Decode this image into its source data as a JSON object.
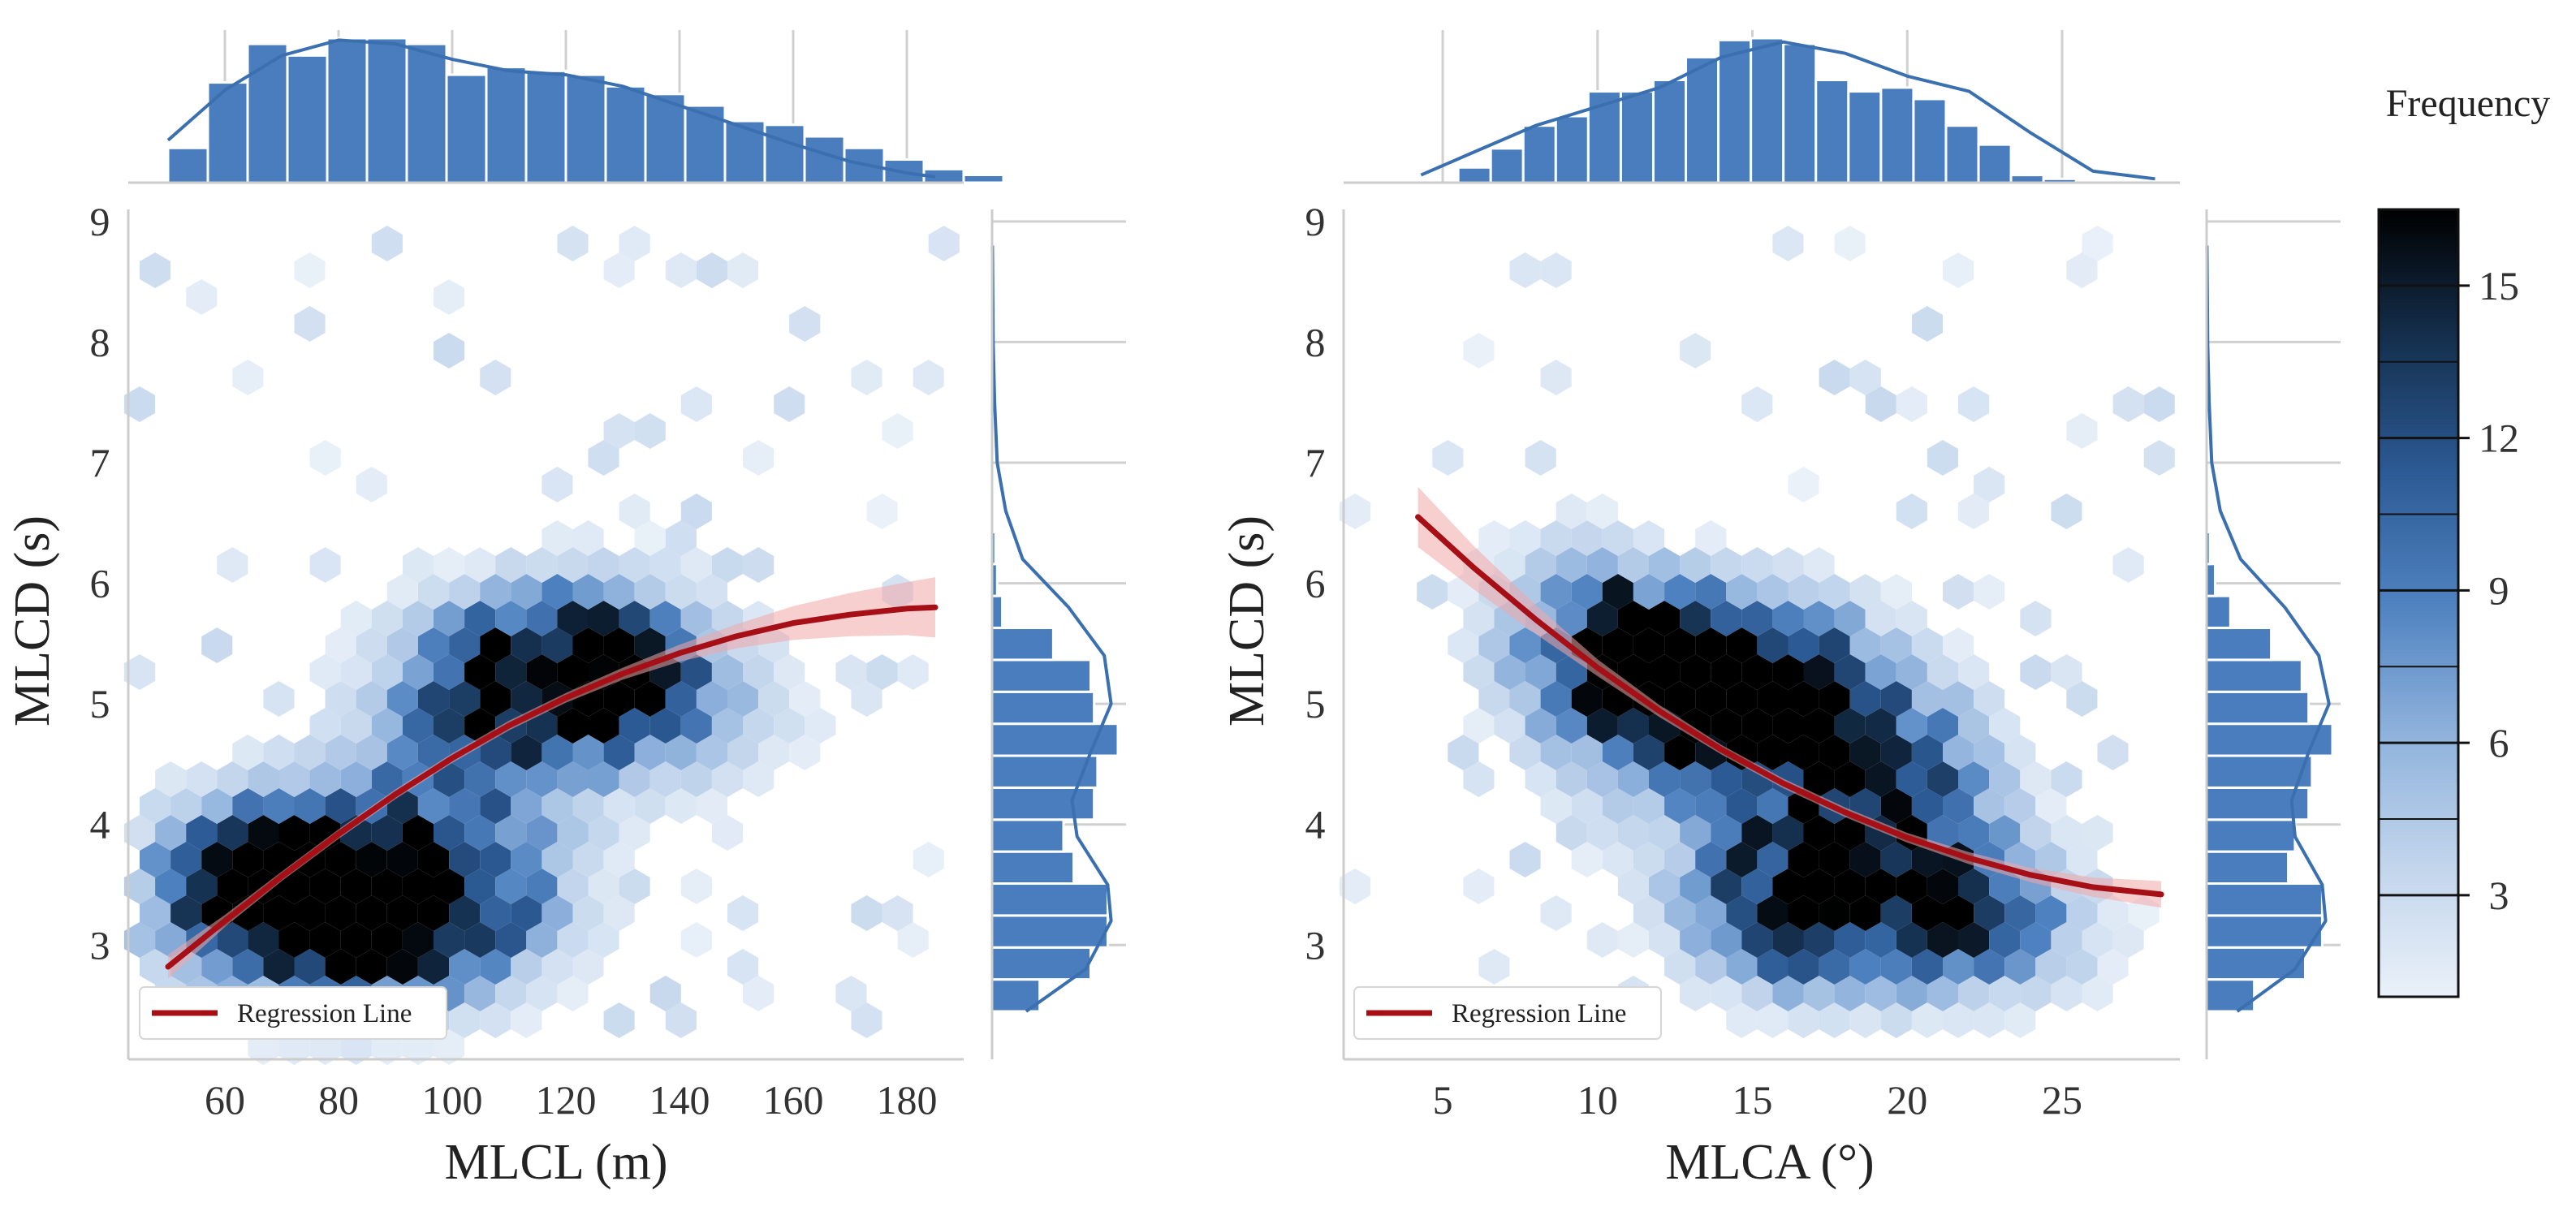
{
  "colors": {
    "bar": "#4a7dbd",
    "bar_edge": "#ffffff",
    "kde": "#3a6fb0",
    "regression": "#a50f15",
    "ci_band": "#f2a8a8",
    "grid": "#d0d0d0",
    "spine": "#cccccc",
    "cmap": [
      "#eaf1f9",
      "#c2d5ec",
      "#8fb2dc",
      "#4f82c0",
      "#2c5a94",
      "#15304f",
      "#000000"
    ]
  },
  "colorbar": {
    "title": "Frequency",
    "ticks": [
      "3",
      "6",
      "9",
      "12",
      "15"
    ],
    "tick_values": [
      3,
      6,
      9,
      12,
      15
    ],
    "range": [
      1,
      16.5
    ]
  },
  "chart_data": [
    {
      "type": "hexbin",
      "xlabel": "MLCL (m)",
      "ylabel": "MLCD (s)",
      "xlim": [
        43,
        190
      ],
      "ylim": [
        2.1,
        9.1
      ],
      "xticks": [
        "60",
        "80",
        "100",
        "120",
        "140",
        "160",
        "180"
      ],
      "xtick_values": [
        60,
        80,
        100,
        120,
        140,
        160,
        180
      ],
      "yticks": [
        "3",
        "4",
        "5",
        "6",
        "7",
        "8",
        "9"
      ],
      "ytick_values": [
        3,
        4,
        5,
        6,
        7,
        8,
        9
      ],
      "legend": "Regression Line",
      "regression": {
        "x": [
          50,
          60,
          70,
          80,
          90,
          100,
          110,
          120,
          130,
          140,
          150,
          160,
          170,
          180,
          185
        ],
        "y": [
          2.82,
          3.2,
          3.57,
          3.92,
          4.25,
          4.55,
          4.82,
          5.05,
          5.25,
          5.42,
          5.56,
          5.67,
          5.74,
          5.79,
          5.8
        ],
        "ci": [
          0.1,
          0.05,
          0.04,
          0.04,
          0.04,
          0.04,
          0.04,
          0.04,
          0.05,
          0.07,
          0.1,
          0.14,
          0.18,
          0.22,
          0.25
        ]
      },
      "hexbin": {
        "centers": [
          [
            75,
            3.4
          ],
          [
            65,
            3.5
          ],
          [
            85,
            3.3
          ],
          [
            95,
            3.2
          ],
          [
            110,
            3.5
          ],
          [
            115,
            5.2
          ],
          [
            125,
            5.4
          ],
          [
            110,
            5.0
          ],
          [
            135,
            5.2
          ],
          [
            100,
            4.5
          ],
          [
            145,
            4.9
          ]
        ],
        "spread": [
          [
            18,
            0.55
          ],
          [
            12,
            0.45
          ],
          [
            14,
            0.5
          ],
          [
            14,
            0.45
          ],
          [
            12,
            0.5
          ],
          [
            16,
            0.5
          ],
          [
            12,
            0.45
          ],
          [
            12,
            0.55
          ],
          [
            12,
            0.5
          ],
          [
            14,
            0.6
          ],
          [
            14,
            0.45
          ]
        ],
        "weights": [
          14,
          7,
          8,
          6,
          4,
          9,
          6,
          5,
          4,
          5,
          3
        ],
        "background": [
          3,
          4,
          5,
          6,
          7,
          8,
          9
        ],
        "peak_cells": [
          [
            80,
            3.55
          ],
          [
            70,
            3.4
          ],
          [
            75,
            3.0
          ],
          [
            78,
            3.35
          ]
        ]
      },
      "top_hist": {
        "bin_start": 50,
        "bin_width": 7,
        "counts": [
          18,
          52,
          72,
          66,
          75,
          75,
          72,
          56,
          60,
          58,
          56,
          50,
          46,
          40,
          32,
          30,
          24,
          18,
          12,
          7,
          4
        ]
      },
      "top_kde": {
        "x": [
          50,
          60,
          70,
          80,
          90,
          100,
          110,
          120,
          130,
          140,
          150,
          160,
          170,
          180,
          185
        ],
        "y": [
          22,
          48,
          66,
          74,
          72,
          64,
          58,
          56,
          50,
          40,
          30,
          20,
          11,
          5,
          3
        ]
      },
      "right_hist": {
        "bin_start": 2.45,
        "bin_width": 0.265,
        "counts": [
          28,
          58,
          68,
          68,
          48,
          42,
          60,
          62,
          74,
          60,
          58,
          36,
          6,
          3,
          2,
          1
        ]
      },
      "right_kde": {
        "y": [
          2.45,
          2.8,
          3.2,
          3.5,
          3.9,
          4.2,
          4.6,
          5.0,
          5.4,
          5.8,
          6.2,
          6.6,
          7.0,
          7.5,
          8.0,
          8.8
        ],
        "x": [
          20,
          55,
          70,
          68,
          50,
          47,
          58,
          70,
          66,
          45,
          18,
          8,
          3,
          1.5,
          0.6,
          0.2
        ]
      }
    },
    {
      "type": "hexbin",
      "xlabel": "MLCA (°)",
      "ylabel": "MLCD (s)",
      "xlim": [
        1.8,
        28.8
      ],
      "ylim": [
        2.1,
        9.1
      ],
      "xticks": [
        "5",
        "10",
        "15",
        "20",
        "25"
      ],
      "xtick_values": [
        5,
        10,
        15,
        20,
        25
      ],
      "yticks": [
        "3",
        "4",
        "5",
        "6",
        "7",
        "8",
        "9"
      ],
      "ytick_values": [
        3,
        4,
        5,
        6,
        7,
        8,
        9
      ],
      "legend": "Regression Line",
      "regression": {
        "x": [
          4.2,
          6,
          8,
          10,
          12,
          14,
          16,
          18,
          20,
          22,
          24,
          26,
          28.2
        ],
        "y": [
          6.55,
          6.13,
          5.7,
          5.3,
          4.94,
          4.62,
          4.34,
          4.1,
          3.89,
          3.72,
          3.58,
          3.48,
          3.42
        ],
        "ci": [
          0.25,
          0.18,
          0.12,
          0.07,
          0.05,
          0.04,
          0.04,
          0.04,
          0.04,
          0.05,
          0.06,
          0.08,
          0.11
        ]
      },
      "hexbin": {
        "centers": [
          [
            11.5,
            5.3
          ],
          [
            14.5,
            5.2
          ],
          [
            17,
            4.9
          ],
          [
            16,
            3.3
          ],
          [
            20,
            4.4
          ],
          [
            21.5,
            3.4
          ],
          [
            9,
            5.6
          ],
          [
            18,
            3.5
          ],
          [
            13,
            4.5
          ],
          [
            23,
            3.1
          ]
        ],
        "spread": [
          [
            2.2,
            0.45
          ],
          [
            2.5,
            0.5
          ],
          [
            2.2,
            0.5
          ],
          [
            2.2,
            0.45
          ],
          [
            2.2,
            0.5
          ],
          [
            2.2,
            0.45
          ],
          [
            2,
            0.6
          ],
          [
            2.5,
            0.6
          ],
          [
            2.5,
            0.6
          ],
          [
            2.5,
            0.4
          ]
        ],
        "weights": [
          12,
          12,
          10,
          10,
          8,
          9,
          5,
          8,
          5,
          5
        ],
        "background": [
          5,
          6,
          7,
          8,
          9
        ],
        "peak_cells": [
          [
            10.5,
            5.85
          ],
          [
            11.5,
            5.3
          ],
          [
            15.5,
            3.2
          ],
          [
            15,
            3.8
          ],
          [
            19,
            4.5
          ],
          [
            21.5,
            3.6
          ],
          [
            14,
            5.3
          ]
        ]
      },
      "top_hist": {
        "bin_start": 5.5,
        "bin_width": 1.05,
        "counts": [
          8,
          18,
          30,
          35,
          48,
          48,
          54,
          66,
          75,
          76,
          73,
          54,
          48,
          50,
          44,
          30,
          20,
          4,
          2
        ]
      },
      "top_kde": {
        "x": [
          4.3,
          6,
          8,
          10,
          12,
          14,
          16,
          18,
          20,
          22,
          24,
          26,
          28
        ],
        "y": [
          4,
          16,
          30,
          40,
          50,
          66,
          74,
          68,
          56,
          48,
          26,
          6,
          2
        ]
      },
      "right_hist": {
        "bin_start": 2.45,
        "bin_width": 0.265,
        "counts": [
          28,
          58,
          68,
          68,
          48,
          52,
          60,
          62,
          74,
          60,
          56,
          38,
          14,
          5,
          2,
          1
        ]
      },
      "right_kde": {
        "y": [
          2.45,
          2.8,
          3.2,
          3.5,
          3.9,
          4.2,
          4.6,
          5.0,
          5.4,
          5.8,
          6.2,
          6.6,
          7.0,
          7.5,
          8.0,
          8.8
        ],
        "x": [
          18,
          52,
          70,
          68,
          52,
          50,
          60,
          72,
          66,
          46,
          20,
          8,
          3,
          1.5,
          0.6,
          0.2
        ]
      }
    }
  ]
}
